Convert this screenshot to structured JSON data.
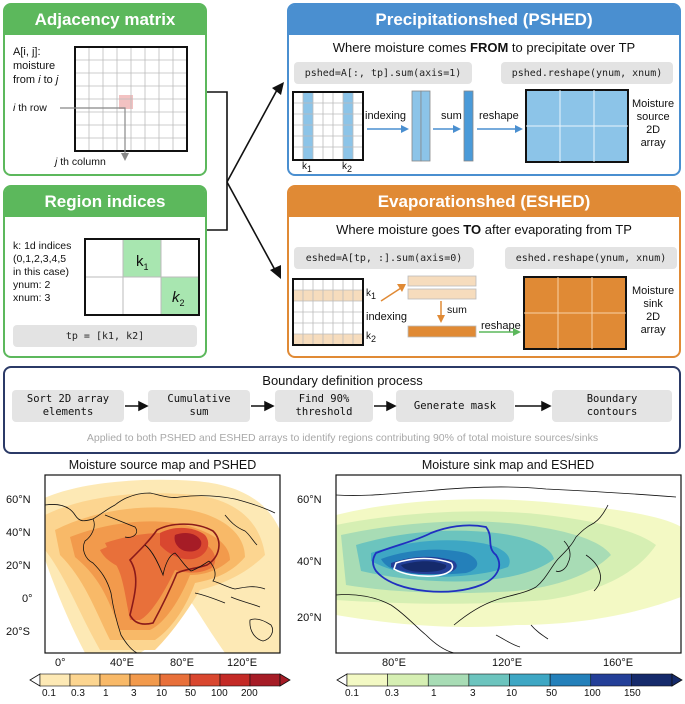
{
  "adjacency": {
    "title": "Adjacency matrix",
    "desc_line1": "A[i, j]:",
    "desc_line2": "moisture",
    "desc_from": "from ",
    "desc_i": "i",
    "desc_to": " to ",
    "desc_j": "j",
    "row_label_i": "i",
    "row_label_rest": " th row",
    "col_label_j": "j",
    "col_label_rest": " th column"
  },
  "region": {
    "title": "Region indices",
    "desc": [
      "k: 1d indices",
      "(0,1,2,3,4,5",
      "in this case)",
      "ynum: 2",
      "xnum: 3"
    ],
    "k1": "k",
    "k1_sub": "1",
    "k2": "k",
    "k2_sub": "2",
    "code": "tp = [k1, k2]"
  },
  "pshed": {
    "title": "Precipitationshed (PSHED)",
    "subtitle_pre": "Where moisture comes ",
    "subtitle_bold": "FROM",
    "subtitle_post": " to precipitate over TP",
    "code1": "pshed=A[:, tp].sum(axis=1)",
    "code2": "pshed.reshape(ynum, xnum)",
    "label_indexing": "indexing",
    "label_sum": "sum",
    "label_reshape": "reshape",
    "k1": "k",
    "k1_sub": "1",
    "k2": "k",
    "k2_sub": "2",
    "result": [
      "Moisture",
      "source",
      "2D",
      "array"
    ]
  },
  "eshed": {
    "title": "Evaporationshed (ESHED)",
    "subtitle_pre": "Where moisture goes ",
    "subtitle_bold": "TO",
    "subtitle_post": " after evaporating from TP",
    "code1": "eshed=A[tp, :].sum(axis=0)",
    "code2": "eshed.reshape(ynum, xnum)",
    "label_indexing": "indexing",
    "label_sum": "sum",
    "label_reshape": "reshape",
    "k1": "k",
    "k1_sub": "1",
    "k2": "k",
    "k2_sub": "2",
    "result": [
      "Moisture",
      "sink",
      "2D",
      "array"
    ]
  },
  "boundary": {
    "title": "Boundary definition process",
    "steps": [
      [
        "Sort 2D array",
        "elements"
      ],
      [
        "Cumulative",
        "sum"
      ],
      [
        "Find 90%",
        "threshold"
      ],
      [
        "Generate mask"
      ],
      [
        "Boundary",
        "contours"
      ]
    ],
    "note": "Applied to both PSHED and ESHED arrays to identify regions contributing 90% of total moisture sources/sinks"
  },
  "map_source": {
    "title": "Moisture source map and PSHED",
    "lat_ticks": [
      "60°N",
      "40°N",
      "20°N",
      "0°",
      "20°S"
    ],
    "lon_ticks": [
      "0°",
      "40°E",
      "80°E",
      "120°E"
    ],
    "colorbar_ticks": [
      "0.1",
      "0.3",
      "1",
      "3",
      "10",
      "50",
      "100",
      "200"
    ],
    "colorbar_colors": [
      "#fde9b5",
      "#fcd590",
      "#f8b968",
      "#f29a4c",
      "#e8703a",
      "#d9472f",
      "#c42a26",
      "#a61c26"
    ]
  },
  "map_sink": {
    "title": "Moisture sink map and ESHED",
    "lat_ticks": [
      "60°N",
      "40°N",
      "20°N"
    ],
    "lon_ticks": [
      "80°E",
      "120°E",
      "160°E"
    ],
    "colorbar_ticks": [
      "0.1",
      "0.3",
      "1",
      "3",
      "10",
      "50",
      "100",
      "150"
    ],
    "colorbar_colors": [
      "#f3f9c4",
      "#d6efb3",
      "#a8dcb5",
      "#6cc4be",
      "#3ea7c4",
      "#2480ba",
      "#233f98",
      "#152a6b"
    ]
  },
  "colors": {
    "green": "#5cb85c",
    "blue": "#4a8fd0",
    "orange": "#e08a35",
    "navy": "#2b3a67",
    "light_blue": "#8cc4e8",
    "light_orange": "#f6dcbd"
  }
}
